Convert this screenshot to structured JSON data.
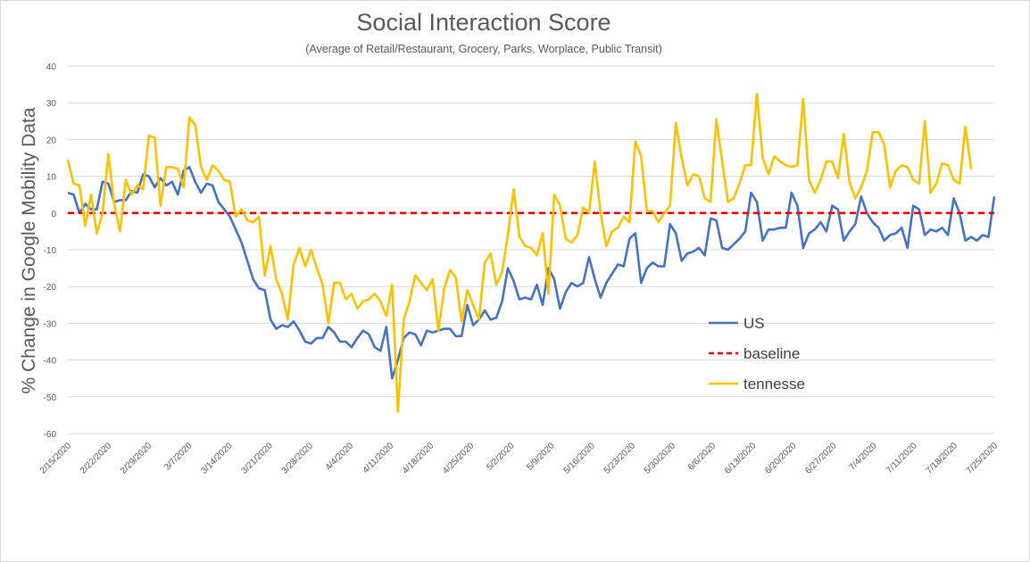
{
  "chart_data": {
    "type": "line",
    "title": "Social Interaction Score",
    "subtitle": "(Average of Retail/Restaurant, Grocery, Parks, Worplace, Public Transit)",
    "xlabel": "",
    "ylabel": "% Change in Google Mobility Data",
    "ylim": [
      -60,
      40
    ],
    "yticks": [
      40,
      30,
      20,
      10,
      0,
      -10,
      -20,
      -30,
      -40,
      -50,
      -60
    ],
    "grid": true,
    "legend_position": "right",
    "x_start": "2/15/2020",
    "x_end": "7/25/2020",
    "x_tick_labels": [
      "2/15/2020",
      "2/22/2020",
      "2/29/2020",
      "3/7/2020",
      "3/14/2020",
      "3/21/2020",
      "3/28/2020",
      "4/4/2020",
      "4/11/2020",
      "4/18/2020",
      "4/25/2020",
      "5/2/2020",
      "5/9/2020",
      "5/16/2020",
      "5/23/2020",
      "5/30/2020",
      "6/6/2020",
      "6/13/2020",
      "6/20/2020",
      "6/27/2020",
      "7/4/2020",
      "7/11/2020",
      "7/18/2020",
      "7/25/2020"
    ],
    "series": [
      {
        "name": "US",
        "color": "#4472c4",
        "dash": "",
        "values": [
          5.5,
          5,
          0,
          2.5,
          1,
          1,
          8.5,
          8,
          3,
          3.5,
          3.5,
          6,
          5.5,
          10.5,
          10,
          7,
          9.5,
          7.5,
          8.5,
          5,
          11.5,
          12.5,
          8.5,
          5.5,
          8,
          7.5,
          3,
          1,
          -1,
          -4.5,
          -8,
          -13,
          -18,
          -20.5,
          -21,
          -29,
          -31.5,
          -30.5,
          -31,
          -29.5,
          -32,
          -35,
          -35.5,
          -34,
          -34,
          -31,
          -32.5,
          -35,
          -35,
          -36.5,
          -34,
          -32,
          -33,
          -36.5,
          -37.5,
          -31,
          -45,
          -40,
          -34,
          -32.5,
          -33,
          -36,
          -32,
          -32.5,
          -32,
          -31.5,
          -31.5,
          -33.5,
          -33.5,
          -25,
          -30.5,
          -29,
          -26.5,
          -29,
          -28.5,
          -24,
          -15,
          -18.5,
          -23.5,
          -23,
          -23.5,
          -19.5,
          -25,
          -15,
          -18,
          -26,
          -21.5,
          -19,
          -20,
          -19,
          -12,
          -18,
          -23,
          -19,
          -16.5,
          -14,
          -14.5,
          -7,
          -5.5,
          -19,
          -15,
          -13.5,
          -14.5,
          -14.5,
          -3,
          -5.5,
          -13,
          -11,
          -10.5,
          -9.5,
          -11.5,
          -1.5,
          -2,
          -9.5,
          -10,
          -8.5,
          -7,
          -5,
          5.5,
          3,
          -7.5,
          -4.5,
          -4.5,
          -4,
          -4,
          5.5,
          2,
          -9.5,
          -5.5,
          -4.5,
          -2.5,
          -5,
          2,
          1,
          -7.5,
          -5,
          -3,
          4.5,
          0,
          -2.5,
          -4,
          -7.5,
          -6,
          -5.5,
          -4,
          -9.5,
          2,
          1,
          -6,
          -4.5,
          -5,
          -4,
          -6,
          4,
          0,
          -7.5,
          -6.5,
          -7.5,
          -6,
          -6.5,
          4.5
        ]
      },
      {
        "name": "baseline",
        "color": "#e00000",
        "dash": "7,5",
        "values": [
          0,
          0
        ]
      },
      {
        "name": "tennesse",
        "color": "#ffc000",
        "dash": "",
        "values": [
          14.5,
          8,
          7.5,
          -3.5,
          5,
          -5.5,
          0,
          16,
          2.5,
          -5,
          9,
          5,
          7.5,
          6.5,
          21,
          20.5,
          2,
          12.5,
          12.5,
          12,
          7,
          26,
          24,
          12.5,
          9,
          13,
          11.5,
          9,
          8.5,
          -1,
          1,
          -2,
          -2.5,
          -1,
          -17,
          -9,
          -18,
          -22,
          -29,
          -14,
          -9.5,
          -14.5,
          -10,
          -15,
          -19.5,
          -30,
          -19,
          -19,
          -23.5,
          -22,
          -26,
          -24,
          -23.5,
          -22,
          -24,
          -28,
          -19.5,
          -54,
          -29,
          -24,
          -17,
          -19,
          -21,
          -18,
          -32,
          -20.5,
          -15.5,
          -17.5,
          -29.5,
          -21,
          -25,
          -29,
          -13.5,
          -11,
          -19.5,
          -16,
          -6,
          6.5,
          -6.5,
          -9,
          -9.5,
          -11.5,
          -5.5,
          -22,
          5,
          2,
          -7,
          -8,
          -6,
          1.5,
          0,
          14,
          0,
          -9,
          -5,
          -4,
          -1,
          -2.5,
          19.5,
          15.5,
          0.5,
          0.5,
          -2.5,
          0,
          2,
          24.5,
          15,
          7.5,
          10.5,
          10,
          4,
          3,
          25.5,
          14,
          3,
          4,
          8,
          13,
          13,
          32.5,
          15,
          10.5,
          15.5,
          14,
          13,
          12.5,
          13,
          31,
          9,
          5.5,
          9,
          14,
          14,
          9.5,
          21.5,
          8.5,
          4,
          7,
          11.5,
          22,
          22,
          18.5,
          7,
          11.5,
          13,
          12.5,
          9,
          8,
          25,
          5.5,
          8,
          13.5,
          13,
          9,
          8,
          23.5,
          12
        ]
      }
    ]
  }
}
